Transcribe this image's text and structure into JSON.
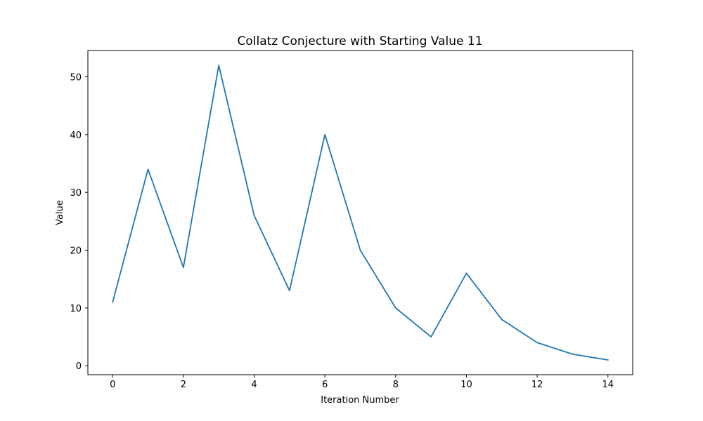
{
  "chart_data": {
    "type": "line",
    "title": "Collatz Conjecture with Starting Value 11",
    "xlabel": "Iteration Number",
    "ylabel": "Value",
    "x": [
      0,
      1,
      2,
      3,
      4,
      5,
      6,
      7,
      8,
      9,
      10,
      11,
      12,
      13,
      14
    ],
    "series": [
      {
        "values": [
          11,
          34,
          17,
          52,
          26,
          13,
          40,
          20,
          10,
          5,
          16,
          8,
          4,
          2,
          1
        ],
        "color": "#1f77b4"
      }
    ],
    "xlim": [
      -0.7,
      14.7
    ],
    "ylim": [
      -1.55,
      54.55
    ],
    "xticks": [
      0,
      2,
      4,
      6,
      8,
      10,
      12,
      14
    ],
    "yticks": [
      0,
      10,
      20,
      30,
      40,
      50
    ],
    "grid": false,
    "legend": "none"
  }
}
